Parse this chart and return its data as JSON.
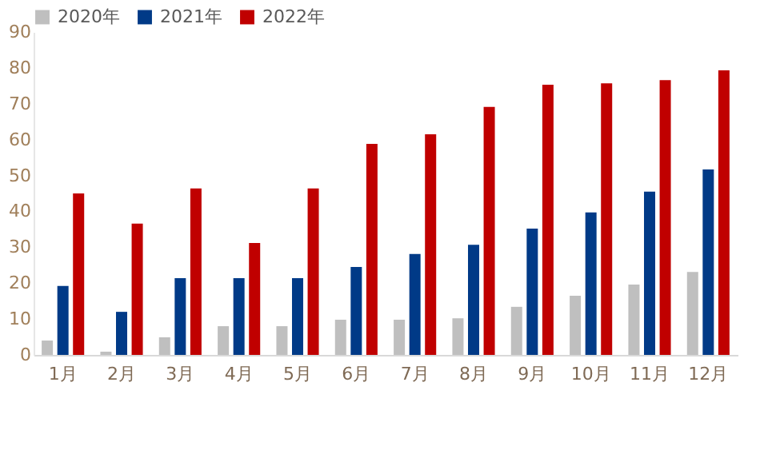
{
  "chart_data": {
    "type": "bar",
    "categories": [
      "1月",
      "2月",
      "3月",
      "4月",
      "5月",
      "6月",
      "7月",
      "8月",
      "9月",
      "10月",
      "11月",
      "12月"
    ],
    "series": [
      {
        "name": "2020年",
        "color": "#bfbfbf",
        "values": [
          4.0,
          0.9,
          4.9,
          8.0,
          8.0,
          9.8,
          9.8,
          10.2,
          13.4,
          16.5,
          19.6,
          23.1
        ]
      },
      {
        "name": "2021年",
        "color": "#003a87",
        "values": [
          19.2,
          12.0,
          21.4,
          21.4,
          21.4,
          24.5,
          28.1,
          30.7,
          35.2,
          39.7,
          45.5,
          51.7
        ]
      },
      {
        "name": "2022年",
        "color": "#c00000",
        "values": [
          45.0,
          36.6,
          46.4,
          31.2,
          46.4,
          58.8,
          61.5,
          69.1,
          75.3,
          75.7,
          76.6,
          79.3
        ]
      }
    ],
    "ylim": [
      0,
      90
    ],
    "yticks": [
      0,
      10,
      20,
      30,
      40,
      50,
      60,
      70,
      80,
      90
    ],
    "grid": false,
    "legend": "top"
  }
}
